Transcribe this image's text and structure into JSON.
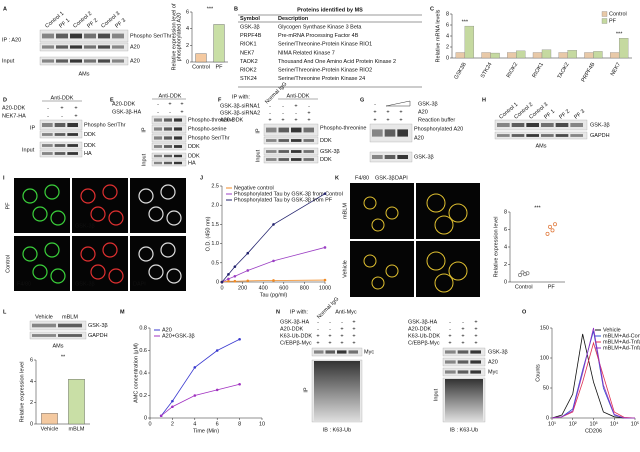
{
  "panels": {
    "A": {
      "letter": "A",
      "lanes": [
        "Control 1",
        "PF 1",
        "Control 2",
        "PF 2",
        "Control 3",
        "PF 3"
      ],
      "ip": "IP : A20",
      "input": "Input",
      "right": [
        "Phospho Ser/Thr",
        "A20",
        "A20"
      ],
      "cells": "AMs"
    },
    "B": {
      "letter": "B",
      "title": "Proteins identified by MS",
      "header": [
        "Symbol",
        "Description"
      ],
      "rows": [
        [
          "GSK-3β",
          "Glycogen Synthase Kinase 3 Beta"
        ],
        [
          "PRPF4B",
          "Pre-mRNA Processing Factor 4B"
        ],
        [
          "RIOK1",
          "Serine/Threonine-Protein Kinase RIO1"
        ],
        [
          "NEK7",
          "NIMA Related Kinase 7"
        ],
        [
          "TAOK2",
          "Thousand And One Amino Acid Protein Kinase 2"
        ],
        [
          "RIOK2",
          "Serine/Threonine-Protein Kinase RIO2"
        ],
        [
          "STK24",
          "Serine/Threonine Protein Kinase 24"
        ]
      ]
    },
    "C": {
      "letter": "C"
    },
    "D": {
      "letter": "D",
      "antibody": "Anti-DDK",
      "rows": [
        {
          "name": "A20-DDK",
          "signs": [
            "-",
            "+",
            "+"
          ]
        },
        {
          "name": "NEK7-HA",
          "signs": [
            "-",
            "-",
            "+"
          ]
        }
      ],
      "ip": "IP",
      "input": "Input",
      "right": [
        "Phospho Ser/Thr",
        "DDK",
        "DDK",
        "HA"
      ]
    },
    "E": {
      "letter": "E",
      "antibody": "Anti-DDK",
      "rows": [
        {
          "name": "A20-DDK",
          "signs": [
            "-",
            "+",
            "+"
          ]
        },
        {
          "name": "GSK-3β-HA",
          "signs": [
            "-",
            "-",
            "+"
          ]
        }
      ],
      "ip": "IP",
      "input": "Input",
      "right": [
        "Phospho-threonine",
        "Phospho-serine",
        "Phospho Ser/Thr",
        "DDK",
        "DDK",
        "HA"
      ]
    },
    "F": {
      "letter": "F",
      "ip_with": "IP with:",
      "lanes": [
        "Normal IgG"
      ],
      "antibody": "Anti-DDK",
      "rows": [
        {
          "name": "GSK-3β-siRNA1",
          "signs": [
            "-",
            "-",
            "+",
            "-"
          ]
        },
        {
          "name": "GSK-3β-siRNA2",
          "signs": [
            "-",
            "-",
            "-",
            "+"
          ]
        },
        {
          "name": "A20-DDK",
          "signs": [
            "+",
            "+",
            "+",
            "+"
          ]
        }
      ],
      "ip": "IP",
      "input": "Input",
      "right": [
        "Phospho-threonine",
        "DDK",
        "GSK-3β",
        "DDK"
      ]
    },
    "G": {
      "letter": "G",
      "rows": [
        {
          "name": "GSK-3β",
          "signs": [
            "-"
          ]
        },
        {
          "name": "A20",
          "signs": [
            "+",
            "+",
            "+"
          ]
        },
        {
          "name": "Reaction buffer",
          "signs": [
            "+",
            "+",
            "+"
          ]
        }
      ],
      "right": [
        "Phosphorylated A20",
        "A20",
        "GSK-3β"
      ]
    },
    "H": {
      "letter": "H",
      "lanes": [
        "Control 1",
        "Control 2",
        "Control 3",
        "PF 1",
        "PF 2",
        "PF 3"
      ],
      "right": [
        "GSK-3β",
        "GAPDH"
      ],
      "cells": "AMs"
    },
    "I": {
      "letter": "I",
      "groups": [
        "PF",
        "Control"
      ],
      "stains": [
        "F4/80",
        "GSK-3β",
        "DAPI"
      ]
    },
    "J": {
      "letter": "J"
    },
    "K": {
      "letter": "K",
      "stains": [
        "F4/80",
        "GSK-3β",
        "DAPI"
      ],
      "groups": [
        "mBLM",
        "Vehicle"
      ]
    },
    "L": {
      "letter": "L",
      "lanes": [
        "Vehicle",
        "mBLM"
      ],
      "right": [
        "GSK-3β",
        "GAPDH"
      ],
      "cells": "AMs"
    },
    "M": {
      "letter": "M"
    },
    "N": {
      "letter": "N",
      "ip_with": "IP with:",
      "lanes": [
        "Normal IgG",
        "Anti-Myc"
      ],
      "rows": [
        {
          "name": "GSK-3β-HA",
          "signs": [
            "-",
            "-",
            "-",
            "+"
          ]
        },
        {
          "name": "A20-DDK",
          "signs": [
            "-",
            "-",
            "+",
            "+"
          ]
        },
        {
          "name": "K63-Ub-DDK",
          "signs": [
            "+",
            "+",
            "+",
            "+"
          ]
        },
        {
          "name": "C/EBPβ-Myc",
          "signs": [
            "+",
            "+",
            "+",
            "+"
          ]
        }
      ],
      "ip": "IP",
      "blot": "Myc",
      "ib": "IB : K63-Ub",
      "input": "Input",
      "input_rows": [
        {
          "name": "GSK-3β-HA",
          "signs": [
            "-",
            "-",
            "+"
          ]
        },
        {
          "name": "A20-DDK",
          "signs": [
            "-",
            "+",
            "+"
          ]
        },
        {
          "name": "K63-Ub-DDK",
          "signs": [
            "+",
            "+",
            "+"
          ]
        },
        {
          "name": "C/EBPβ-Myc",
          "signs": [
            "+",
            "+",
            "+"
          ]
        }
      ],
      "right": [
        "GSK-3β",
        "A20",
        "Myc"
      ],
      "ib2": "IB : K63-Ub"
    },
    "O": {
      "letter": "O"
    }
  },
  "chart_data": [
    {
      "type": "bar",
      "ylabel": [
        "Relative expression level of",
        "phosphorylated A20"
      ],
      "categories": [
        "Control",
        "PF"
      ],
      "values": [
        1,
        4.5
      ],
      "colors": [
        "#f4c9a0",
        "#c9dfa6"
      ],
      "ylim": [
        0,
        6
      ],
      "yticks": [
        0,
        2,
        4,
        6
      ],
      "annotation": "***"
    },
    {
      "type": "grouped-bar",
      "ylabel": "Relative mRNA levels",
      "categories": [
        "GSK3B",
        "STK24",
        "RIOK2",
        "RIOK1",
        "TAOK2",
        "PRPF4B",
        "NEK7"
      ],
      "series": [
        {
          "name": "Control",
          "color": "#e8c9a8",
          "values": [
            1,
            1,
            1,
            1,
            1,
            1,
            1
          ]
        },
        {
          "name": "PF",
          "color": "#c5d9a0",
          "values": [
            5.8,
            0.9,
            1.3,
            1.5,
            1.4,
            1.2,
            3.6
          ]
        }
      ],
      "annotations": [
        "***",
        null,
        null,
        null,
        null,
        null,
        "***"
      ],
      "ylim": [
        0,
        8
      ],
      "yticks": [
        0,
        2,
        4,
        6,
        8
      ],
      "legend": "top-right"
    },
    {
      "type": "line",
      "xlabel": "Tau (pg/ml)",
      "ylabel": "O.D. (450 nm)",
      "x": [
        0,
        62.5,
        125,
        250,
        500,
        1000
      ],
      "series": [
        {
          "name": "Negative control",
          "color": "#f08a24",
          "values": [
            0,
            0.02,
            0.02,
            0.03,
            0.04,
            0.05
          ]
        },
        {
          "name": "Phosphorylated Tau by GSK-3β from Control",
          "color": "#9b3fc4",
          "values": [
            0,
            0.08,
            0.15,
            0.3,
            0.55,
            0.9
          ]
        },
        {
          "name": "Phosphorylated Tau by GSK-3β from PF",
          "color": "#23236e",
          "values": [
            0,
            0.2,
            0.4,
            0.75,
            1.5,
            2.3
          ]
        }
      ],
      "xlim": [
        0,
        1000
      ],
      "xticks": [
        0,
        200,
        400,
        600,
        800,
        1000
      ],
      "ylim": [
        0,
        2.5
      ],
      "yticks": [
        0,
        0.5,
        {
          "value": 1,
          "label": "1.0"
        },
        1.5,
        {
          "value": 2,
          "label": "2.0"
        },
        2.5
      ],
      "legend": "top-left",
      "markers": true
    },
    {
      "type": "dot",
      "ylabel": "Relative expression level",
      "categories": [
        "Control",
        "PF"
      ],
      "values": [
        [
          0.8,
          1.1,
          0.9,
          1.0
        ],
        [
          5.5,
          6.3,
          5.9,
          6.6
        ]
      ],
      "colors": [
        "#777777",
        "#e0783a"
      ],
      "ylim": [
        0,
        8
      ],
      "yticks": [
        0,
        2,
        4,
        6,
        8
      ],
      "annotation": "***"
    },
    {
      "type": "bar",
      "ylabel": "Relative expression level",
      "categories": [
        "Vehicle",
        "mBLM"
      ],
      "values": [
        1,
        4.2
      ],
      "colors": [
        "#f4c9a0",
        "#c9dfa6"
      ],
      "ylim": [
        0,
        6
      ],
      "yticks": [
        0,
        2,
        4,
        6
      ],
      "annotation": "**"
    },
    {
      "type": "line",
      "xlabel": "Time (Min)",
      "ylabel": "AMC concentration (μM)",
      "x": [
        1,
        2,
        4,
        6,
        8
      ],
      "series": [
        {
          "name": "A20",
          "color": "#3a3ad0",
          "values": [
            0.02,
            0.15,
            0.45,
            0.6,
            0.7
          ]
        },
        {
          "name": "A20+GSK-3β",
          "color": "#a030c0",
          "values": [
            0.02,
            0.1,
            0.2,
            0.25,
            0.3
          ]
        }
      ],
      "xlim": [
        0,
        10
      ],
      "xticks": [
        0,
        2,
        4,
        6,
        8,
        10
      ],
      "ylim": [
        0,
        0.8
      ],
      "yticks": [
        0,
        0.2,
        0.4,
        0.6,
        0.8
      ],
      "legend": "top-left",
      "markers": true
    },
    {
      "type": "line",
      "xlabel": "CD206",
      "ylabel": "Counts",
      "log_x": true,
      "x": [
        10,
        30,
        100,
        300,
        1000,
        3000,
        10000,
        30000,
        100000
      ],
      "series": [
        {
          "name": "Vehicle",
          "color": "#111111",
          "values": [
            0,
            5,
            40,
            140,
            60,
            10,
            2,
            0,
            0
          ]
        },
        {
          "name": "mBLM+Ad-Con",
          "color": "#3050d0",
          "values": [
            0,
            2,
            15,
            80,
            145,
            50,
            5,
            0,
            0
          ]
        },
        {
          "name": "mBLM+Ad-Tnfaip3",
          "color": "#e03050",
          "values": [
            0,
            2,
            10,
            60,
            125,
            70,
            10,
            1,
            0
          ]
        },
        {
          "name": "mBLM+Ad-Tnfaip3+Ad-Gsk3b",
          "color": "#9030c0",
          "values": [
            0,
            2,
            12,
            75,
            150,
            55,
            6,
            0,
            0
          ]
        }
      ],
      "xlim": [
        10,
        100000
      ],
      "xticks": [
        {
          "value": 10,
          "label": "10¹"
        },
        {
          "value": 100,
          "label": "10²"
        },
        {
          "value": 1000,
          "label": "10³"
        },
        {
          "value": 10000,
          "label": "10⁴"
        },
        {
          "value": 100000,
          "label": "10⁵"
        }
      ],
      "ylim": [
        0,
        150
      ],
      "yticks": [
        0,
        50,
        100,
        150
      ],
      "legend": "top-right"
    }
  ]
}
